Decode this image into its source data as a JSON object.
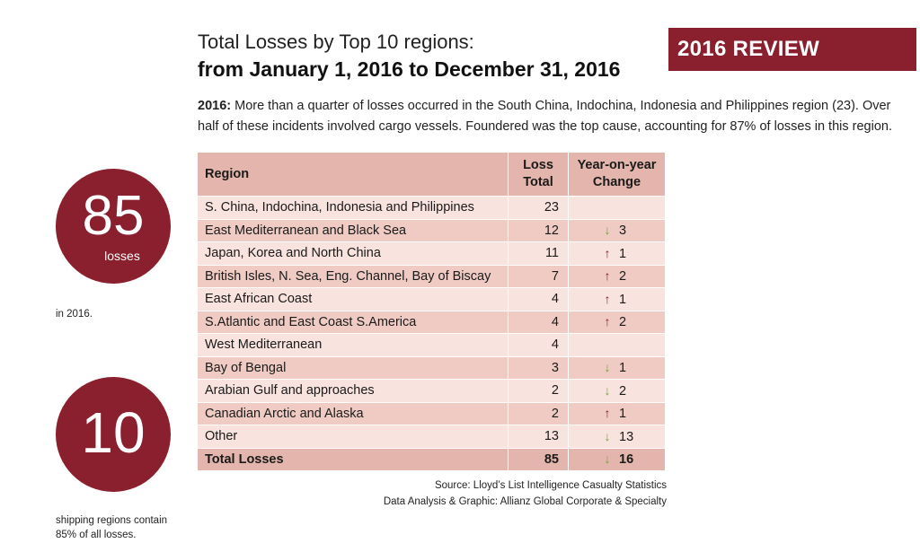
{
  "badge": "2016 REVIEW",
  "title_line1": "Total Losses by Top 10 regions:",
  "title_line2": "from January 1, 2016 to December 31, 2016",
  "intro": {
    "lead": "2016:",
    "text": " More than a quarter of losses occurred in the South China, Indochina, Indonesia and Philippines region (23). Over half of these incidents involved cargo vessels. Foundered was the top cause, accounting for 87% of losses in this region."
  },
  "stat1": {
    "number": "85",
    "unit": "losses",
    "caption": "in 2016."
  },
  "stat2": {
    "number": "10",
    "caption": "shipping regions contain 85% of all losses."
  },
  "table": {
    "headers": {
      "region": "Region",
      "loss_total": "Loss Total",
      "yoy": "Year-on-year Change"
    },
    "rows": [
      {
        "region": "S. China, Indochina, Indonesia and Philippines",
        "total": "23",
        "dir": "",
        "change": ""
      },
      {
        "region": "East Mediterranean and Black Sea",
        "total": "12",
        "dir": "down",
        "change": "3"
      },
      {
        "region": "Japan, Korea and North China",
        "total": "11",
        "dir": "up",
        "change": "1"
      },
      {
        "region": "British Isles, N. Sea, Eng. Channel, Bay of Biscay",
        "total": "7",
        "dir": "up",
        "change": "2"
      },
      {
        "region": "East African Coast",
        "total": "4",
        "dir": "up",
        "change": "1"
      },
      {
        "region": "S.Atlantic and East Coast S.America",
        "total": "4",
        "dir": "up",
        "change": "2"
      },
      {
        "region": "West Mediterranean",
        "total": "4",
        "dir": "",
        "change": ""
      },
      {
        "region": "Bay of Bengal",
        "total": "3",
        "dir": "down",
        "change": "1"
      },
      {
        "region": "Arabian Gulf and approaches",
        "total": "2",
        "dir": "down",
        "change": "2"
      },
      {
        "region": "Canadian Arctic and Alaska",
        "total": "2",
        "dir": "up",
        "change": "1"
      },
      {
        "region": "Other",
        "total": "13",
        "dir": "down",
        "change": "13"
      }
    ],
    "total_row": {
      "region": "Total Losses",
      "total": "85",
      "dir": "down",
      "change": "16"
    }
  },
  "source": {
    "line1": "Source: Lloyd’s List Intelligence Casualty Statistics",
    "line2": "Data Analysis & Graphic: Allianz Global Corporate & Specialty"
  },
  "colors": {
    "brand": "#8a1f2d",
    "header": "#e3b5ac",
    "row_light": "#f8e3de",
    "row_dark": "#efcbc4",
    "arrow_down": "#6aab2e",
    "arrow_up": "#8a1f2d"
  },
  "icons": {
    "down": "arrow-down-icon",
    "up": "arrow-up-icon"
  }
}
